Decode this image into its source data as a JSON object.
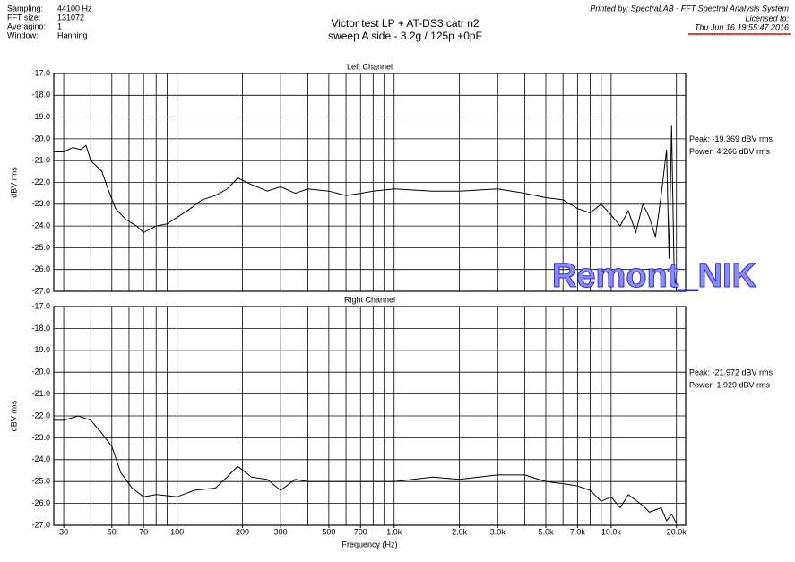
{
  "header": {
    "info": [
      [
        "Sampling:",
        "44100 Hz"
      ],
      [
        "FFT size:",
        "131072"
      ],
      [
        "Averagino:",
        "1"
      ],
      [
        "Window:",
        "Hanning"
      ]
    ],
    "title": "Victor test LP + AT-DS3 catr n2",
    "subtitle": "sweep A side  - 3.2g / 125p +0pF",
    "printed_by": "Printed by: SpectraLAB - FFT Spectral Analysis System",
    "licensed": "Licensed to:",
    "date": "Thu Jun 16 19:55:47 2016",
    "watermark": "Remont_NIK"
  },
  "chart_data": [
    {
      "type": "line",
      "title": "Left Channel",
      "ylabel": "dBV rms",
      "log_x": true,
      "grid": true,
      "color": "#000000",
      "xlim": [
        27,
        22050
      ],
      "ylim": [
        -27,
        -17
      ],
      "yticks": [
        {
          "value": -17,
          "label": "-17.0"
        },
        {
          "value": -18,
          "label": "-18.0"
        },
        {
          "value": -19,
          "label": "-19.0"
        },
        {
          "value": -20,
          "label": "-20.0"
        },
        {
          "value": -21,
          "label": "-21.0"
        },
        {
          "value": -22,
          "label": "-22.0"
        },
        {
          "value": -23,
          "label": "-23.0"
        },
        {
          "value": -24,
          "label": "-24.0"
        },
        {
          "value": -25,
          "label": "-25.0"
        },
        {
          "value": -26,
          "label": "-26.0"
        },
        {
          "value": -27,
          "label": "-27.0"
        }
      ],
      "x_gridlines": [
        30,
        40,
        50,
        60,
        70,
        80,
        90,
        100,
        200,
        300,
        400,
        500,
        600,
        700,
        800,
        900,
        1000,
        2000,
        3000,
        4000,
        5000,
        6000,
        7000,
        8000,
        9000,
        10000,
        20000
      ],
      "annotations": [
        "Peak: -19.369 dBV rms",
        "Power: 4.266 dBV rms"
      ],
      "x": [
        27,
        30,
        33,
        36,
        38,
        40,
        45,
        48,
        52,
        58,
        65,
        70,
        80,
        90,
        100,
        115,
        130,
        150,
        170,
        190,
        220,
        260,
        300,
        350,
        400,
        500,
        600,
        700,
        800,
        1000,
        1500,
        2000,
        3000,
        4000,
        5000,
        6000,
        7000,
        8000,
        9000,
        10000,
        11000,
        12000,
        13000,
        14000,
        15000,
        16000,
        17000,
        18000,
        18500,
        19000,
        19500,
        20000
      ],
      "values": [
        -20.6,
        -20.6,
        -20.4,
        -20.5,
        -20.3,
        -21.0,
        -21.5,
        -22.3,
        -23.2,
        -23.7,
        -24.0,
        -24.3,
        -24.0,
        -23.9,
        -23.6,
        -23.2,
        -22.8,
        -22.6,
        -22.3,
        -21.8,
        -22.1,
        -22.4,
        -22.2,
        -22.5,
        -22.3,
        -22.4,
        -22.6,
        -22.5,
        -22.4,
        -22.3,
        -22.4,
        -22.4,
        -22.3,
        -22.5,
        -22.7,
        -22.8,
        -23.2,
        -23.4,
        -23.0,
        -23.5,
        -24.0,
        -23.3,
        -24.3,
        -23.0,
        -23.6,
        -24.5,
        -22.6,
        -20.5,
        -25.5,
        -19.4,
        -26.0,
        -27.0
      ]
    },
    {
      "type": "line",
      "title": "Right Channel",
      "ylabel": "dBV rms",
      "xlabel": "Frequency (Hz)",
      "log_x": true,
      "grid": true,
      "color": "#000000",
      "xlim": [
        27,
        22050
      ],
      "ylim": [
        -27,
        -17
      ],
      "yticks": [
        {
          "value": -17,
          "label": "-17.0"
        },
        {
          "value": -18,
          "label": "-18.0"
        },
        {
          "value": -19,
          "label": "-19.0"
        },
        {
          "value": -20,
          "label": "-20.0"
        },
        {
          "value": -21,
          "label": "-21.0"
        },
        {
          "value": -22,
          "label": "-22.0"
        },
        {
          "value": -23,
          "label": "-23.0"
        },
        {
          "value": -24,
          "label": "-24.0"
        },
        {
          "value": -25,
          "label": "-25.0"
        },
        {
          "value": -26,
          "label": "-26.0"
        },
        {
          "value": -27,
          "label": "-27.0"
        }
      ],
      "xticks": [
        30,
        50,
        70,
        100,
        200,
        300,
        500,
        700,
        {
          "value": 1000,
          "label": "1.0k"
        },
        {
          "value": 2000,
          "label": "2.0k"
        },
        {
          "value": 3000,
          "label": "3.0k"
        },
        {
          "value": 5000,
          "label": "5.0k"
        },
        {
          "value": 7000,
          "label": "7.0k"
        },
        {
          "value": 10000,
          "label": "10.0k"
        },
        {
          "value": 20000,
          "label": "20.0k"
        }
      ],
      "x_gridlines": [
        30,
        40,
        50,
        60,
        70,
        80,
        90,
        100,
        200,
        300,
        400,
        500,
        600,
        700,
        800,
        900,
        1000,
        2000,
        3000,
        4000,
        5000,
        6000,
        7000,
        8000,
        9000,
        10000,
        20000
      ],
      "annotations": [
        "Peak: -21.972 dBV rms",
        "Power: 1.929 dBV rms"
      ],
      "x": [
        27,
        30,
        35,
        40,
        45,
        50,
        55,
        62,
        70,
        80,
        100,
        120,
        150,
        170,
        190,
        220,
        260,
        300,
        350,
        400,
        500,
        700,
        1000,
        1500,
        2000,
        3000,
        4000,
        5000,
        6000,
        7000,
        8000,
        9000,
        10000,
        11000,
        12000,
        14000,
        15000,
        17000,
        18000,
        19000,
        20000
      ],
      "values": [
        -22.2,
        -22.2,
        -22.0,
        -22.2,
        -22.8,
        -23.4,
        -24.6,
        -25.3,
        -25.7,
        -25.6,
        -25.7,
        -25.4,
        -25.3,
        -24.8,
        -24.3,
        -24.8,
        -24.9,
        -25.4,
        -24.9,
        -25.0,
        -25.0,
        -25.0,
        -25.0,
        -24.8,
        -24.9,
        -24.7,
        -24.7,
        -25.0,
        -25.1,
        -25.2,
        -25.4,
        -25.9,
        -25.7,
        -26.2,
        -25.6,
        -26.1,
        -26.4,
        -26.2,
        -26.8,
        -26.5,
        -26.9
      ]
    }
  ]
}
